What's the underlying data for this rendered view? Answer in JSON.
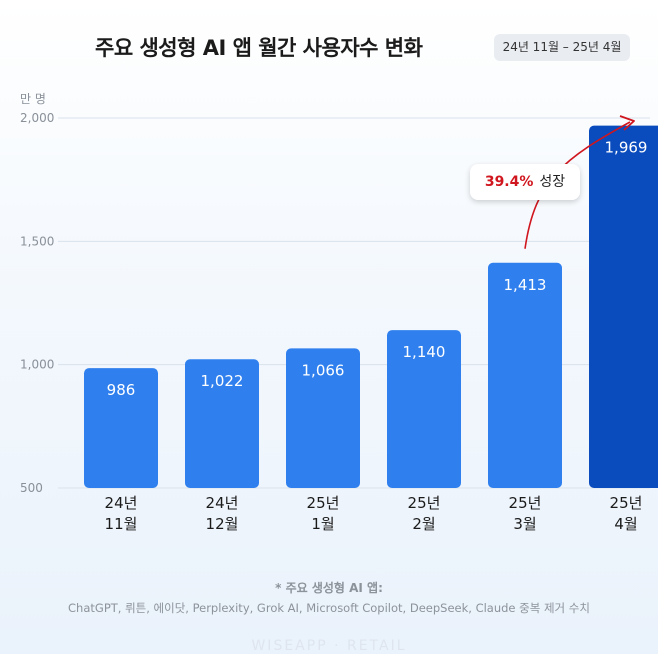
{
  "header": {
    "title": "주요 생성형 AI 앱 월간 사용자수 변화",
    "period": "24년 11월 – 25년 4월"
  },
  "unit_label": "만 명",
  "annotation": {
    "percent": "39.4%",
    "text": "성장"
  },
  "footnote": {
    "title": "* 주요 생성형 AI 앱:",
    "text": "ChatGPT, 뤼튼, 에이닷, Perplexity, Grok AI, Microsoft Copilot, DeepSeek, Claude 중복 제거 수치"
  },
  "watermark": "WISEAPP · RETAIL",
  "colors": {
    "bar": "#2f80ee",
    "bar_highlight": "#0a4bbd",
    "gridline": "#d9e2ec",
    "arrow": "#d0161e"
  },
  "chart_data": {
    "type": "bar",
    "categories": [
      [
        "24년",
        "11월"
      ],
      [
        "24년",
        "12월"
      ],
      [
        "25년",
        "1월"
      ],
      [
        "25년",
        "2월"
      ],
      [
        "25년",
        "3월"
      ],
      [
        "25년",
        "4월"
      ]
    ],
    "values": [
      986,
      1022,
      1066,
      1140,
      1413,
      1969
    ],
    "value_labels": [
      "986",
      "1,022",
      "1,066",
      "1,140",
      "1,413",
      "1,969"
    ],
    "ylim": [
      500,
      2000
    ],
    "yticks": [
      500,
      1000,
      1500,
      2000
    ],
    "ytick_labels": [
      "500",
      "1,000",
      "1,500",
      "2,000"
    ],
    "ylabel": "만 명",
    "highlight_index": 5,
    "grid": true
  }
}
